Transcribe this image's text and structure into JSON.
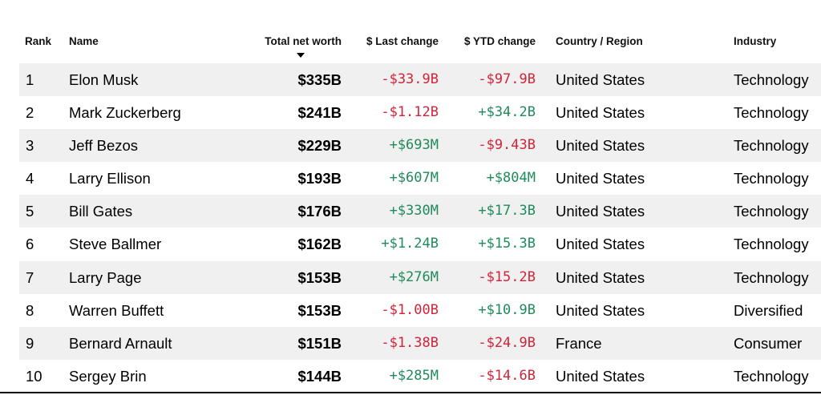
{
  "colors": {
    "negative": "#d0243a",
    "positive": "#1f8a5c",
    "stripe": "#f0f0f0"
  },
  "header": {
    "rank": "Rank",
    "name": "Name",
    "net_worth": "Total net worth",
    "last_change": "$ Last change",
    "ytd_change": "$ YTD change",
    "country": "Country / Region",
    "industry": "Industry",
    "sort_icon": "sort-descending-icon"
  },
  "rows": [
    {
      "rank": "1",
      "name": "Elon Musk",
      "net_worth": "$335B",
      "last_change": "-$33.9B",
      "last_dir": "neg",
      "ytd_change": "-$97.9B",
      "ytd_dir": "neg",
      "country": "United States",
      "industry": "Technology"
    },
    {
      "rank": "2",
      "name": "Mark Zuckerberg",
      "net_worth": "$241B",
      "last_change": "-$1.12B",
      "last_dir": "neg",
      "ytd_change": "+$34.2B",
      "ytd_dir": "pos",
      "country": "United States",
      "industry": "Technology"
    },
    {
      "rank": "3",
      "name": "Jeff Bezos",
      "net_worth": "$229B",
      "last_change": "+$693M",
      "last_dir": "pos",
      "ytd_change": "-$9.43B",
      "ytd_dir": "neg",
      "country": "United States",
      "industry": "Technology"
    },
    {
      "rank": "4",
      "name": "Larry Ellison",
      "net_worth": "$193B",
      "last_change": "+$607M",
      "last_dir": "pos",
      "ytd_change": "+$804M",
      "ytd_dir": "pos",
      "country": "United States",
      "industry": "Technology"
    },
    {
      "rank": "5",
      "name": "Bill Gates",
      "net_worth": "$176B",
      "last_change": "+$330M",
      "last_dir": "pos",
      "ytd_change": "+$17.3B",
      "ytd_dir": "pos",
      "country": "United States",
      "industry": "Technology"
    },
    {
      "rank": "6",
      "name": "Steve Ballmer",
      "net_worth": "$162B",
      "last_change": "+$1.24B",
      "last_dir": "pos",
      "ytd_change": "+$15.3B",
      "ytd_dir": "pos",
      "country": "United States",
      "industry": "Technology"
    },
    {
      "rank": "7",
      "name": "Larry Page",
      "net_worth": "$153B",
      "last_change": "+$276M",
      "last_dir": "pos",
      "ytd_change": "-$15.2B",
      "ytd_dir": "neg",
      "country": "United States",
      "industry": "Technology"
    },
    {
      "rank": "8",
      "name": "Warren Buffett",
      "net_worth": "$153B",
      "last_change": "-$1.00B",
      "last_dir": "neg",
      "ytd_change": "+$10.9B",
      "ytd_dir": "pos",
      "country": "United States",
      "industry": "Diversified"
    },
    {
      "rank": "9",
      "name": "Bernard Arnault",
      "net_worth": "$151B",
      "last_change": "-$1.38B",
      "last_dir": "neg",
      "ytd_change": "-$24.9B",
      "ytd_dir": "neg",
      "country": "France",
      "industry": "Consumer"
    },
    {
      "rank": "10",
      "name": "Sergey Brin",
      "net_worth": "$144B",
      "last_change": "+$285M",
      "last_dir": "pos",
      "ytd_change": "-$14.6B",
      "ytd_dir": "neg",
      "country": "United States",
      "industry": "Technology"
    }
  ]
}
